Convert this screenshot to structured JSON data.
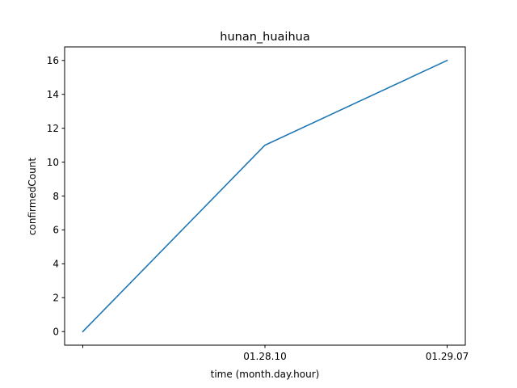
{
  "chart_data": {
    "type": "line",
    "title": "hunan_huaihua",
    "xlabel": "time (month.day.hour)",
    "ylabel": "confirmedCount",
    "x_ticks": [
      "",
      "01.28.10",
      "01.29.07"
    ],
    "ylim": [
      -0.8,
      16.8
    ],
    "y_ticks": [
      0,
      2,
      4,
      6,
      8,
      10,
      12,
      14,
      16
    ],
    "grid": false,
    "series": [
      {
        "values": [
          0,
          11,
          16
        ],
        "color": "#1f77b4"
      }
    ]
  }
}
